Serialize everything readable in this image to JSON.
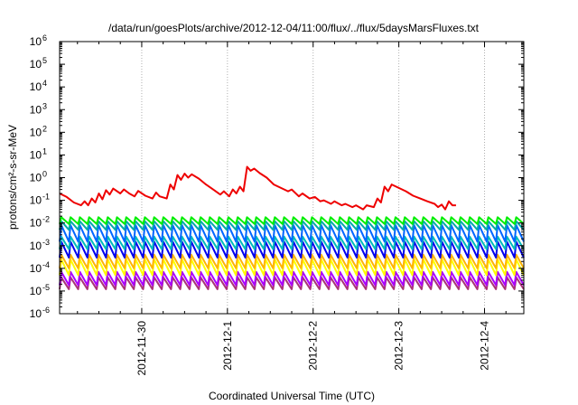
{
  "chart_data": {
    "type": "line",
    "title": "/data/run/goesPlots/archive/2012-12-04/11:00/flux/../flux/5daysMarsFluxes.txt",
    "xlabel": "Coordinated Universal Time (UTC)",
    "ylabel": "protons/cm²-s-sr-MeV",
    "ylim": [
      1e-06,
      1000000.0
    ],
    "yscale": "log",
    "y_ticks": [
      {
        "base": "10",
        "exp": "-6"
      },
      {
        "base": "10",
        "exp": "-5"
      },
      {
        "base": "10",
        "exp": "-4"
      },
      {
        "base": "10",
        "exp": "-3"
      },
      {
        "base": "10",
        "exp": "-2"
      },
      {
        "base": "10",
        "exp": "-1"
      },
      {
        "base": "10",
        "exp": "0"
      },
      {
        "base": "10",
        "exp": "1"
      },
      {
        "base": "10",
        "exp": "2"
      },
      {
        "base": "10",
        "exp": "3"
      },
      {
        "base": "10",
        "exp": "4"
      },
      {
        "base": "10",
        "exp": "5"
      },
      {
        "base": "10",
        "exp": "6"
      }
    ],
    "xlim": [
      "2012-11-29T01:00",
      "2012-12-04T11:00"
    ],
    "x_ticks": [
      "2012-11-30",
      "2012-12-1",
      "2012-12-2",
      "2012-12-3",
      "2012-12-4"
    ],
    "x_tick_dates": [
      "2012-11-30T00:00",
      "2012-12-01T00:00",
      "2012-12-02T00:00",
      "2012-12-03T00:00",
      "2012-12-04T00:00"
    ],
    "grid": true,
    "series": [
      {
        "color": "#ee0000",
        "points": [
          [
            "2012-11-29T01:00",
            0.2
          ],
          [
            "2012-11-29T03:00",
            0.14
          ],
          [
            "2012-11-29T05:00",
            0.08
          ],
          [
            "2012-11-29T07:00",
            0.06
          ],
          [
            "2012-11-29T08:00",
            0.09
          ],
          [
            "2012-11-29T09:00",
            0.06
          ],
          [
            "2012-11-29T10:00",
            0.12
          ],
          [
            "2012-11-29T11:00",
            0.08
          ],
          [
            "2012-11-29T12:00",
            0.2
          ],
          [
            "2012-11-29T13:00",
            0.11
          ],
          [
            "2012-11-29T14:00",
            0.28
          ],
          [
            "2012-11-29T15:00",
            0.18
          ],
          [
            "2012-11-29T16:00",
            0.33
          ],
          [
            "2012-11-29T18:00",
            0.2
          ],
          [
            "2012-11-29T19:00",
            0.3
          ],
          [
            "2012-11-29T20:30",
            0.2
          ],
          [
            "2012-11-29T22:00",
            0.15
          ],
          [
            "2012-11-29T23:00",
            0.26
          ],
          [
            "2012-11-30T01:00",
            0.16
          ],
          [
            "2012-11-30T03:00",
            0.12
          ],
          [
            "2012-11-30T04:00",
            0.22
          ],
          [
            "2012-11-30T05:00",
            0.15
          ],
          [
            "2012-11-30T07:00",
            0.12
          ],
          [
            "2012-11-30T08:00",
            0.5
          ],
          [
            "2012-11-30T09:00",
            0.3
          ],
          [
            "2012-11-30T10:00",
            1.3
          ],
          [
            "2012-11-30T11:00",
            0.8
          ],
          [
            "2012-11-30T12:00",
            1.5
          ],
          [
            "2012-11-30T13:00",
            1.0
          ],
          [
            "2012-11-30T14:00",
            1.4
          ],
          [
            "2012-11-30T16:00",
            0.9
          ],
          [
            "2012-11-30T18:00",
            0.5
          ],
          [
            "2012-11-30T20:00",
            0.3
          ],
          [
            "2012-11-30T22:00",
            0.18
          ],
          [
            "2012-11-30T23:00",
            0.25
          ],
          [
            "2012-12-01T00:30",
            0.15
          ],
          [
            "2012-12-01T01:30",
            0.3
          ],
          [
            "2012-12-01T02:30",
            0.2
          ],
          [
            "2012-12-01T03:30",
            0.4
          ],
          [
            "2012-12-01T04:30",
            0.25
          ],
          [
            "2012-12-01T05:30",
            3.0
          ],
          [
            "2012-12-01T06:30",
            2.0
          ],
          [
            "2012-12-01T07:30",
            2.5
          ],
          [
            "2012-12-01T09:00",
            1.6
          ],
          [
            "2012-12-01T11:00",
            1.0
          ],
          [
            "2012-12-01T13:00",
            0.5
          ],
          [
            "2012-12-01T15:00",
            0.35
          ],
          [
            "2012-12-01T17:00",
            0.25
          ],
          [
            "2012-12-01T18:00",
            0.3
          ],
          [
            "2012-12-01T20:00",
            0.15
          ],
          [
            "2012-12-01T21:00",
            0.2
          ],
          [
            "2012-12-01T23:00",
            0.12
          ],
          [
            "2012-12-02T00:30",
            0.14
          ],
          [
            "2012-12-02T02:00",
            0.09
          ],
          [
            "2012-12-02T03:00",
            0.1
          ],
          [
            "2012-12-02T05:00",
            0.07
          ],
          [
            "2012-12-02T06:00",
            0.09
          ],
          [
            "2012-12-02T08:00",
            0.06
          ],
          [
            "2012-12-02T09:00",
            0.07
          ],
          [
            "2012-12-02T11:00",
            0.05
          ],
          [
            "2012-12-02T12:00",
            0.06
          ],
          [
            "2012-12-02T14:00",
            0.04
          ],
          [
            "2012-12-02T15:00",
            0.06
          ],
          [
            "2012-12-02T17:00",
            0.05
          ],
          [
            "2012-12-02T18:00",
            0.12
          ],
          [
            "2012-12-02T19:00",
            0.08
          ],
          [
            "2012-12-02T20:00",
            0.4
          ],
          [
            "2012-12-02T21:00",
            0.25
          ],
          [
            "2012-12-02T22:00",
            0.5
          ],
          [
            "2012-12-03T00:00",
            0.35
          ],
          [
            "2012-12-03T02:00",
            0.25
          ],
          [
            "2012-12-03T04:00",
            0.16
          ],
          [
            "2012-12-03T06:00",
            0.12
          ],
          [
            "2012-12-03T08:00",
            0.09
          ],
          [
            "2012-12-03T10:00",
            0.07
          ],
          [
            "2012-12-03T11:00",
            0.05
          ],
          [
            "2012-12-03T12:00",
            0.065
          ],
          [
            "2012-12-03T13:00",
            0.04
          ],
          [
            "2012-12-03T14:00",
            0.09
          ],
          [
            "2012-12-03T15:00",
            0.06
          ],
          [
            "2012-12-03T16:00",
            0.06
          ]
        ]
      }
    ],
    "periodic_series": [
      {
        "color": "#00ee00",
        "peak": 0.018,
        "trough": 0.009
      },
      {
        "color": "#00aaaa",
        "peak": 0.012,
        "trough": 0.005
      },
      {
        "color": "#0066ff",
        "peak": 0.008,
        "trough": 0.0015
      },
      {
        "color": "#00bbbb",
        "peak": 0.0025,
        "trough": 0.0007
      },
      {
        "color": "#0000ee",
        "peak": 0.0015,
        "trough": 0.0003
      },
      {
        "color": "#ffb400",
        "peak": 0.0004,
        "trough": 0.0001
      },
      {
        "color": "#ffff00",
        "peak": 0.00025,
        "trough": 5e-05
      },
      {
        "color": "#aa00ff",
        "peak": 7e-05,
        "trough": 1.8e-05
      },
      {
        "color": "#aa3377",
        "peak": 4e-05,
        "trough": 1.2e-05
      }
    ],
    "periodic_cycles": 50
  }
}
